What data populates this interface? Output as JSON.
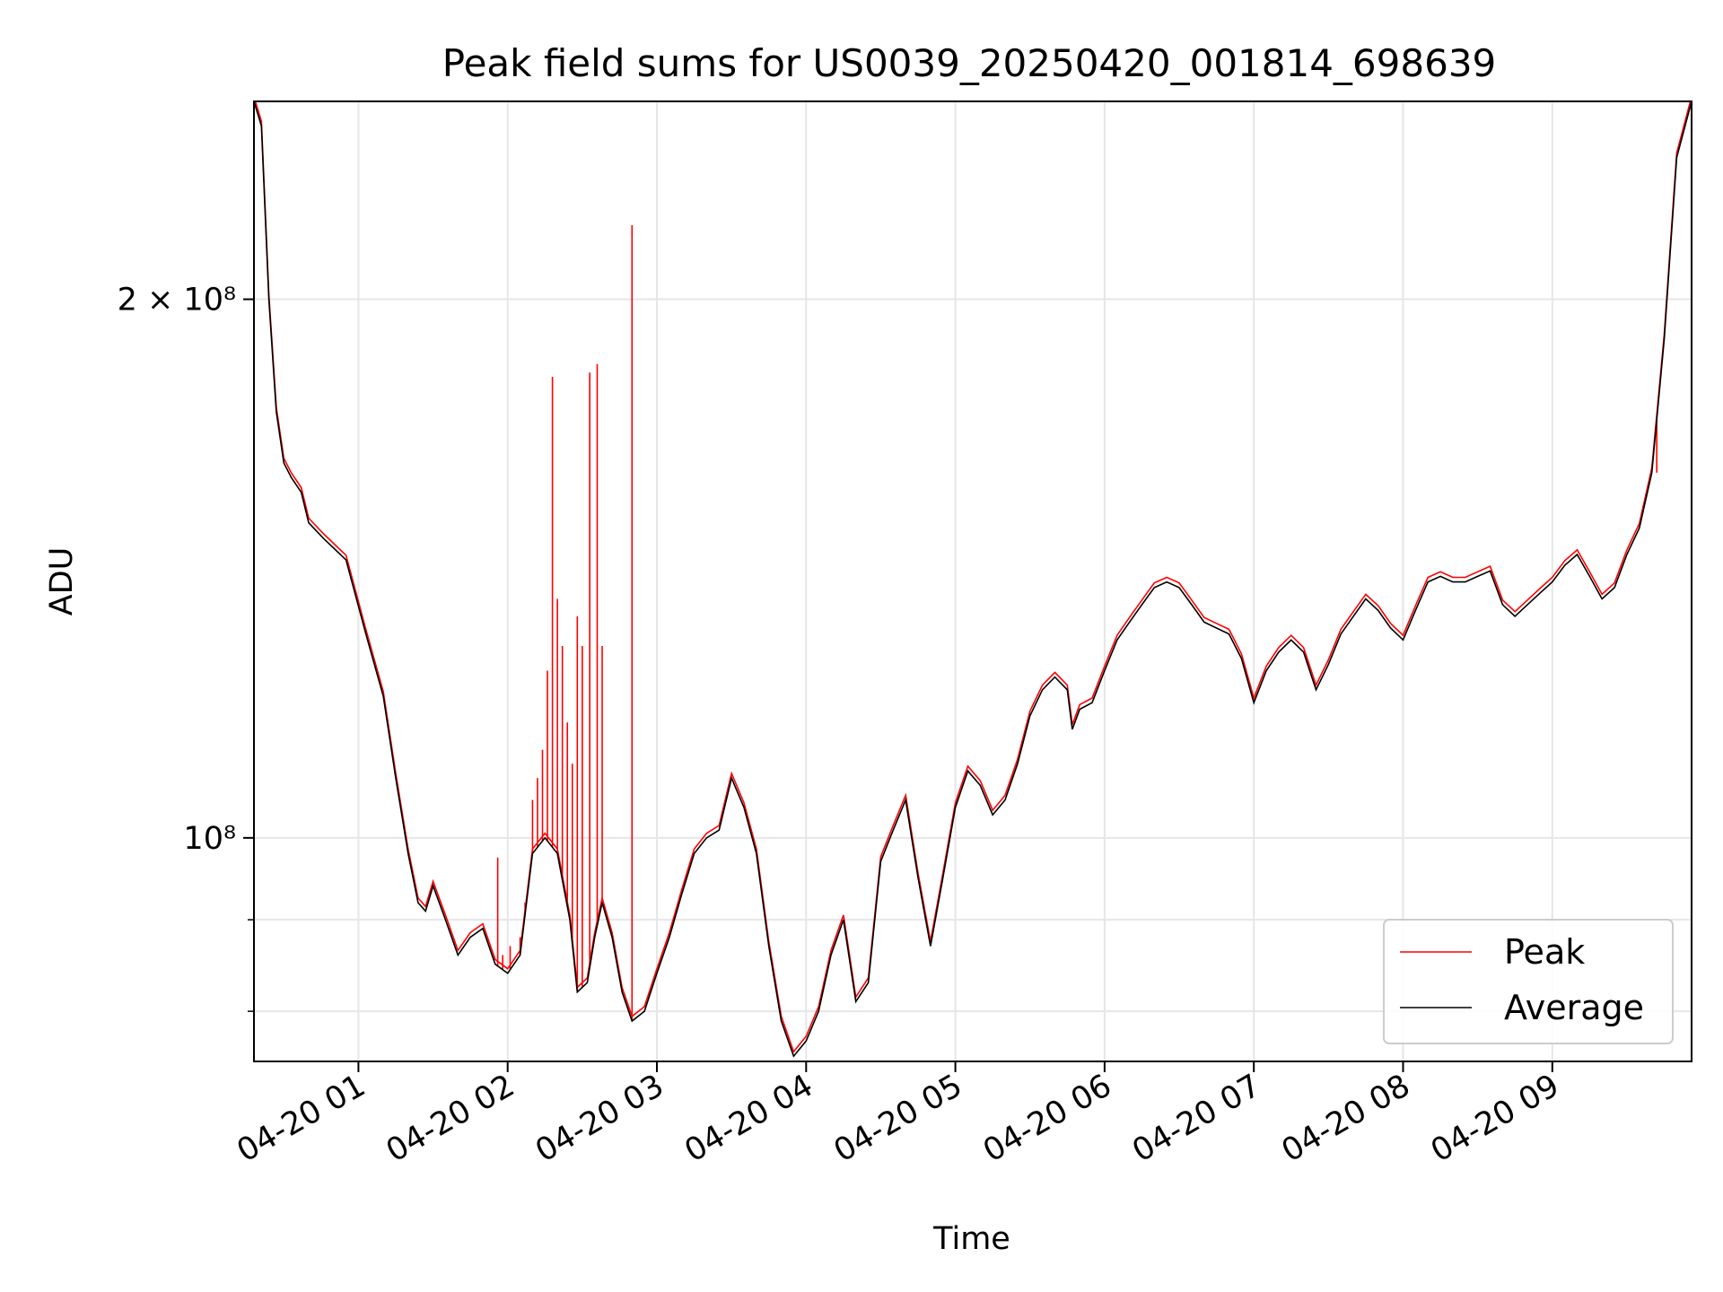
{
  "chart_data": {
    "type": "line",
    "title": "Peak field sums for US0039_20250420_001814_698639",
    "xlabel": "Time",
    "ylabel": "ADU",
    "x_range": [
      "04-20 00:18",
      "04-20 09:56"
    ],
    "y_range": [
      75000000,
      258000000
    ],
    "y_scale": "log",
    "grid": true,
    "legend_position": "lower right",
    "x_ticks": [
      {
        "label": "04-20 01",
        "time": "01:00"
      },
      {
        "label": "04-20 02",
        "time": "02:00"
      },
      {
        "label": "04-20 03",
        "time": "03:00"
      },
      {
        "label": "04-20 04",
        "time": "04:00"
      },
      {
        "label": "04-20 05",
        "time": "05:00"
      },
      {
        "label": "04-20 06",
        "time": "06:00"
      },
      {
        "label": "04-20 07",
        "time": "07:00"
      },
      {
        "label": "04-20 08",
        "time": "08:00"
      },
      {
        "label": "04-20 09",
        "time": "09:00"
      }
    ],
    "y_ticks_major": [
      {
        "value": 200000000,
        "label": "2 × 10⁸"
      },
      {
        "value": 100000000,
        "label": "10⁸"
      }
    ],
    "y_ticks_minor": [
      90000000,
      80000000
    ],
    "series": [
      {
        "name": "Average",
        "color": "#000000",
        "points": [
          [
            "00:18",
            258000000
          ],
          [
            "00:21",
            250000000
          ],
          [
            "00:24",
            200000000
          ],
          [
            "00:27",
            173000000
          ],
          [
            "00:30",
            162000000
          ],
          [
            "00:33",
            159000000
          ],
          [
            "00:37",
            156000000
          ],
          [
            "00:40",
            150000000
          ],
          [
            "00:46",
            147000000
          ],
          [
            "00:55",
            143000000
          ],
          [
            "01:03",
            130000000
          ],
          [
            "01:10",
            120000000
          ],
          [
            "01:15",
            108000000
          ],
          [
            "01:20",
            98000000
          ],
          [
            "01:24",
            92000000
          ],
          [
            "01:27",
            91000000
          ],
          [
            "01:30",
            94000000
          ],
          [
            "01:35",
            90000000
          ],
          [
            "01:40",
            86000000
          ],
          [
            "01:45",
            88000000
          ],
          [
            "01:50",
            89000000
          ],
          [
            "01:55",
            85000000
          ],
          [
            "02:00",
            84000000
          ],
          [
            "02:05",
            86000000
          ],
          [
            "02:10",
            98000000
          ],
          [
            "02:15",
            100000000
          ],
          [
            "02:20",
            98000000
          ],
          [
            "02:25",
            90000000
          ],
          [
            "02:28",
            82000000
          ],
          [
            "02:32",
            83000000
          ],
          [
            "02:35",
            88000000
          ],
          [
            "02:38",
            92000000
          ],
          [
            "02:42",
            88000000
          ],
          [
            "02:46",
            82000000
          ],
          [
            "02:50",
            79000000
          ],
          [
            "02:55",
            80000000
          ],
          [
            "03:00",
            84000000
          ],
          [
            "03:05",
            88000000
          ],
          [
            "03:10",
            93000000
          ],
          [
            "03:15",
            98000000
          ],
          [
            "03:20",
            100000000
          ],
          [
            "03:25",
            101000000
          ],
          [
            "03:30",
            108000000
          ],
          [
            "03:35",
            104000000
          ],
          [
            "03:40",
            98000000
          ],
          [
            "03:45",
            87000000
          ],
          [
            "03:50",
            79000000
          ],
          [
            "03:55",
            75500000
          ],
          [
            "04:00",
            77000000
          ],
          [
            "04:05",
            80000000
          ],
          [
            "04:10",
            86000000
          ],
          [
            "04:15",
            90000000
          ],
          [
            "04:20",
            81000000
          ],
          [
            "04:25",
            83000000
          ],
          [
            "04:30",
            97000000
          ],
          [
            "04:35",
            101000000
          ],
          [
            "04:40",
            105000000
          ],
          [
            "04:45",
            95000000
          ],
          [
            "04:50",
            87000000
          ],
          [
            "04:55",
            95000000
          ],
          [
            "05:00",
            104000000
          ],
          [
            "05:05",
            109000000
          ],
          [
            "05:10",
            107000000
          ],
          [
            "05:15",
            103000000
          ],
          [
            "05:20",
            105000000
          ],
          [
            "05:25",
            110000000
          ],
          [
            "05:30",
            117000000
          ],
          [
            "05:35",
            121000000
          ],
          [
            "05:40",
            123000000
          ],
          [
            "05:45",
            121000000
          ],
          [
            "05:47",
            115000000
          ],
          [
            "05:50",
            118000000
          ],
          [
            "05:55",
            119000000
          ],
          [
            "06:00",
            124000000
          ],
          [
            "06:05",
            129000000
          ],
          [
            "06:10",
            132000000
          ],
          [
            "06:15",
            135000000
          ],
          [
            "06:20",
            138000000
          ],
          [
            "06:25",
            139000000
          ],
          [
            "06:30",
            138000000
          ],
          [
            "06:35",
            135000000
          ],
          [
            "06:40",
            132000000
          ],
          [
            "06:45",
            131000000
          ],
          [
            "06:50",
            130000000
          ],
          [
            "06:55",
            126000000
          ],
          [
            "07:00",
            119000000
          ],
          [
            "07:05",
            124000000
          ],
          [
            "07:10",
            127000000
          ],
          [
            "07:15",
            129000000
          ],
          [
            "07:20",
            127000000
          ],
          [
            "07:25",
            121000000
          ],
          [
            "07:30",
            125000000
          ],
          [
            "07:35",
            130000000
          ],
          [
            "07:40",
            133000000
          ],
          [
            "07:45",
            136000000
          ],
          [
            "07:50",
            134000000
          ],
          [
            "07:55",
            131000000
          ],
          [
            "08:00",
            129000000
          ],
          [
            "08:05",
            134000000
          ],
          [
            "08:10",
            139000000
          ],
          [
            "08:15",
            140000000
          ],
          [
            "08:20",
            139000000
          ],
          [
            "08:25",
            139000000
          ],
          [
            "08:30",
            140000000
          ],
          [
            "08:35",
            141000000
          ],
          [
            "08:40",
            135000000
          ],
          [
            "08:45",
            133000000
          ],
          [
            "08:50",
            135000000
          ],
          [
            "08:55",
            137000000
          ],
          [
            "09:00",
            139000000
          ],
          [
            "09:05",
            142000000
          ],
          [
            "09:10",
            144000000
          ],
          [
            "09:15",
            140000000
          ],
          [
            "09:20",
            136000000
          ],
          [
            "09:25",
            138000000
          ],
          [
            "09:30",
            144000000
          ],
          [
            "09:35",
            149000000
          ],
          [
            "09:40",
            160000000
          ],
          [
            "09:45",
            190000000
          ],
          [
            "09:50",
            240000000
          ],
          [
            "09:56",
            258000000
          ]
        ]
      },
      {
        "name": "Peak",
        "color": "#ff0000",
        "spikes": [
          [
            "01:56",
            97500000
          ],
          [
            "01:58",
            86000000
          ],
          [
            "02:01",
            87000000
          ],
          [
            "02:05",
            88000000
          ],
          [
            "02:07",
            92000000
          ],
          [
            "02:10",
            105000000
          ],
          [
            "02:12",
            108000000
          ],
          [
            "02:14",
            112000000
          ],
          [
            "02:16",
            124000000
          ],
          [
            "02:18",
            181000000
          ],
          [
            "02:20",
            136000000
          ],
          [
            "02:22",
            128000000
          ],
          [
            "02:24",
            116000000
          ],
          [
            "02:26",
            110000000
          ],
          [
            "02:28",
            133000000
          ],
          [
            "02:30",
            128000000
          ],
          [
            "02:33",
            182000000
          ],
          [
            "02:36",
            184000000
          ],
          [
            "02:38",
            128000000
          ],
          [
            "02:50",
            220000000
          ],
          [
            "09:42",
            160000000
          ]
        ]
      }
    ]
  }
}
